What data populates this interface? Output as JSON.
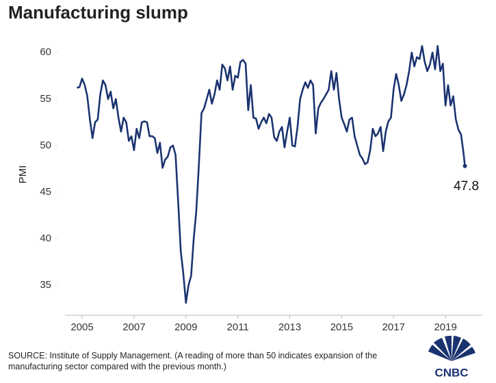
{
  "chart_data": {
    "type": "line",
    "title": "Manufacturing slump",
    "y_label": "PMI",
    "source": "SOURCE: Institute of Supply Management. (A reading of more than 50 indicates expansion of the manufacturing sector compared with the previous month.)",
    "logo": "CNBC",
    "color": "#1a3370",
    "grid": false,
    "xlim": [
      2004.34,
      2020.42
    ],
    "xticks": [
      2005,
      2007,
      2009,
      2011,
      2013,
      2015,
      2017,
      2019
    ],
    "ylim": [
      32.2,
      61.6
    ],
    "yticks": [
      35,
      40,
      45,
      50,
      55,
      60
    ],
    "x": [
      2004.8,
      2004.9,
      2005.0,
      2005.1,
      2005.2,
      2005.3,
      2005.4,
      2005.5,
      2005.6,
      2005.7,
      2005.8,
      2005.9,
      2006.0,
      2006.1,
      2006.2,
      2006.3,
      2006.4,
      2006.5,
      2006.6,
      2006.7,
      2006.8,
      2006.9,
      2007.0,
      2007.1,
      2007.2,
      2007.3,
      2007.4,
      2007.5,
      2007.6,
      2007.7,
      2007.8,
      2007.9,
      2008.0,
      2008.1,
      2008.2,
      2008.3,
      2008.4,
      2008.5,
      2008.6,
      2008.7,
      2008.8,
      2008.9,
      2009.0,
      2009.1,
      2009.2,
      2009.3,
      2009.4,
      2009.5,
      2009.6,
      2009.7,
      2009.8,
      2009.9,
      2010.0,
      2010.1,
      2010.2,
      2010.3,
      2010.4,
      2010.5,
      2010.6,
      2010.7,
      2010.8,
      2010.9,
      2011.0,
      2011.1,
      2011.2,
      2011.3,
      2011.4,
      2011.5,
      2011.6,
      2011.7,
      2011.8,
      2011.9,
      2012.0,
      2012.1,
      2012.2,
      2012.3,
      2012.4,
      2012.5,
      2012.6,
      2012.7,
      2012.8,
      2012.9,
      2013.0,
      2013.1,
      2013.2,
      2013.3,
      2013.4,
      2013.5,
      2013.6,
      2013.7,
      2013.8,
      2013.9,
      2014.0,
      2014.1,
      2014.2,
      2014.3,
      2014.4,
      2014.5,
      2014.6,
      2014.7,
      2014.8,
      2014.9,
      2015.0,
      2015.1,
      2015.2,
      2015.3,
      2015.4,
      2015.5,
      2015.6,
      2015.7,
      2015.8,
      2015.9,
      2016.0,
      2016.1,
      2016.2,
      2016.3,
      2016.4,
      2016.5,
      2016.6,
      2016.7,
      2016.8,
      2016.9,
      2017.0,
      2017.1,
      2017.2,
      2017.3,
      2017.4,
      2017.5,
      2017.6,
      2017.7,
      2017.8,
      2017.9,
      2018.0,
      2018.1,
      2018.2,
      2018.3,
      2018.4,
      2018.5,
      2018.6,
      2018.7,
      2018.8,
      2018.9,
      2019.0,
      2019.1,
      2019.2,
      2019.3,
      2019.4,
      2019.5,
      2019.6,
      2019.7,
      2019.75
    ],
    "values": [
      56.2,
      56.3,
      57.2,
      56.5,
      55.3,
      52.8,
      50.8,
      52.5,
      52.8,
      55.5,
      57.0,
      56.5,
      55.0,
      55.8,
      54.0,
      55.0,
      53.0,
      51.5,
      53.0,
      52.5,
      50.5,
      51.0,
      49.5,
      51.8,
      50.8,
      52.5,
      52.6,
      52.5,
      51.0,
      51.0,
      50.8,
      49.2,
      50.3,
      47.6,
      48.5,
      48.8,
      49.8,
      50.0,
      49.0,
      44.0,
      38.7,
      36.2,
      33.1,
      35.0,
      36.0,
      40.0,
      43.0,
      48.0,
      53.5,
      54.0,
      55.0,
      56.0,
      54.5,
      55.5,
      57.0,
      56.0,
      58.7,
      58.3,
      57.0,
      58.5,
      56.0,
      57.5,
      57.3,
      59.0,
      59.2,
      58.8,
      53.8,
      56.5,
      53.0,
      52.9,
      51.8,
      52.5,
      53.0,
      52.4,
      53.4,
      53.0,
      50.9,
      50.5,
      51.5,
      52.0,
      49.8,
      51.5,
      53.0,
      50.0,
      49.9,
      52.0,
      55.0,
      56.0,
      56.8,
      56.2,
      57.0,
      56.5,
      51.3,
      54.0,
      54.6,
      55.0,
      55.5,
      56.0,
      58.0,
      56.0,
      57.8,
      55.0,
      53.0,
      52.3,
      51.5,
      52.8,
      53.0,
      51.0,
      50.0,
      49.0,
      48.6,
      48.0,
      48.2,
      49.5,
      51.8,
      51.0,
      51.3,
      52.0,
      49.4,
      51.5,
      52.6,
      53.0,
      56.0,
      57.7,
      56.5,
      54.8,
      55.5,
      56.5,
      58.0,
      60.0,
      58.5,
      59.5,
      59.3,
      60.7,
      59.0,
      58.0,
      58.7,
      60.0,
      58.2,
      60.7,
      58.0,
      58.8,
      54.3,
      56.5,
      54.3,
      55.3,
      52.8,
      51.7,
      51.2,
      49.1,
      47.8
    ]
  }
}
